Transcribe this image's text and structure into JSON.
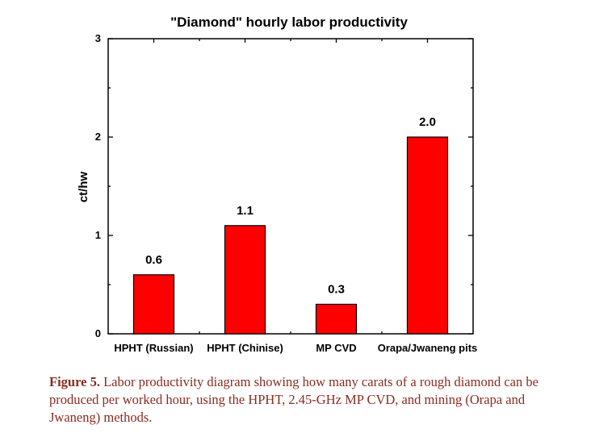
{
  "chart_data": {
    "type": "bar",
    "title": "\"Diamond\" hourly labor productivity",
    "xlabel": "",
    "ylabel": "ct/hw",
    "ylim": [
      0,
      3
    ],
    "yticks": [
      0,
      1,
      2,
      3
    ],
    "categories": [
      "HPHT (Russian)",
      "HPHT (Chinise)",
      "MP CVD",
      "Orapa/Jwaneng pits"
    ],
    "values": [
      0.6,
      1.1,
      0.3,
      2.0
    ],
    "value_labels": [
      "0.6",
      "1.1",
      "0.3",
      "2.0"
    ],
    "bar_color": "#ff0000",
    "bar_edge_color": "#000000",
    "grid": false
  },
  "caption": {
    "label": "Figure 5.",
    "text": " Labor productivity diagram showing how many carats of a rough diamond can be produced per worked hour, using the HPHT, 2.45-GHz MP CVD, and mining (Orapa and Jwaneng) methods."
  },
  "colors": {
    "caption": "#8a2b1f"
  }
}
